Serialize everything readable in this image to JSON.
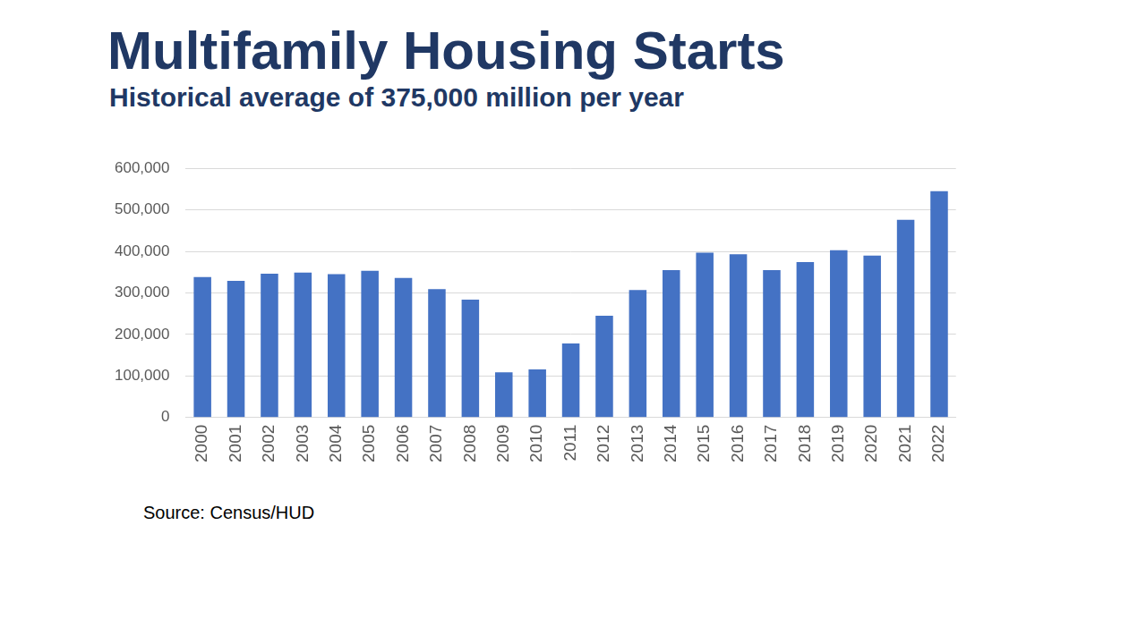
{
  "chart_data": {
    "type": "bar",
    "title": "Multifamily Housing Starts",
    "subtitle": "Historical average of 375,000 million per year",
    "source": "Source: Census/HUD",
    "categories": [
      "2000",
      "2001",
      "2002",
      "2003",
      "2004",
      "2005",
      "2006",
      "2007",
      "2008",
      "2009",
      "2010",
      "2011",
      "2012",
      "2013",
      "2014",
      "2015",
      "2016",
      "2017",
      "2018",
      "2019",
      "2020",
      "2021",
      "2022"
    ],
    "values": [
      338000,
      329000,
      346000,
      349000,
      345000,
      353000,
      336000,
      309000,
      284000,
      109000,
      116000,
      178000,
      245000,
      307000,
      355000,
      397000,
      393000,
      355000,
      374000,
      403000,
      390000,
      476000,
      545000
    ],
    "color": "#4472c4",
    "ylim": [
      0,
      600000
    ],
    "yticks": [
      0,
      {
        "value": 100000,
        "label": "100,000"
      },
      {
        "value": 200000,
        "label": "200,000"
      },
      {
        "value": 300000,
        "label": "300,000"
      },
      {
        "value": 400000,
        "label": "400,000"
      },
      {
        "value": 500000,
        "label": "500,000"
      },
      {
        "value": 600000,
        "label": "600,000"
      }
    ],
    "grid": true
  }
}
